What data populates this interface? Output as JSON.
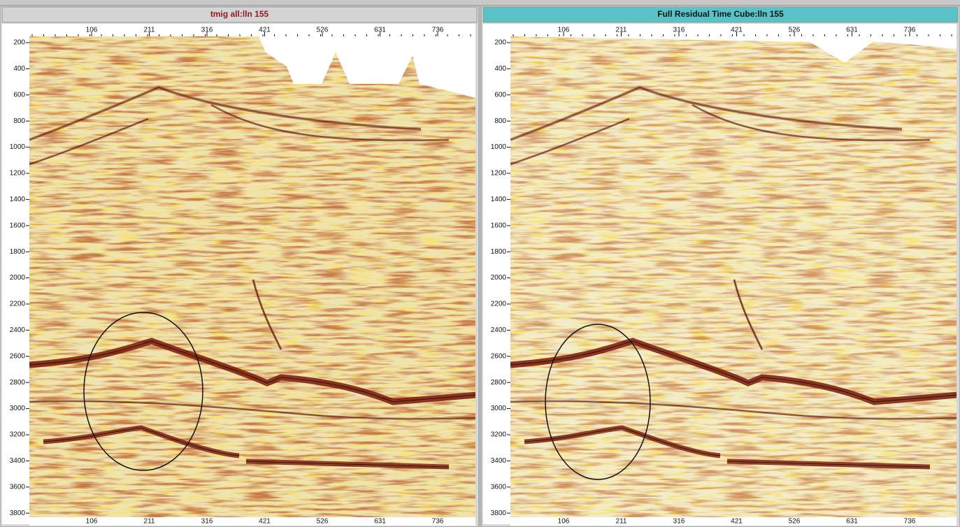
{
  "panels": [
    {
      "title": "tmig all:lln 155"
    },
    {
      "title": "Full Residual Time Cube:lln 155"
    }
  ],
  "x_axis_labels": [
    106,
    211,
    316,
    421,
    526,
    631,
    736
  ],
  "y_axis_labels": [
    200,
    400,
    600,
    800,
    1000,
    1200,
    1400,
    1600,
    1800,
    2000,
    2200,
    2400,
    2600,
    2800,
    3000,
    3200,
    3400,
    3600,
    3800
  ]
}
